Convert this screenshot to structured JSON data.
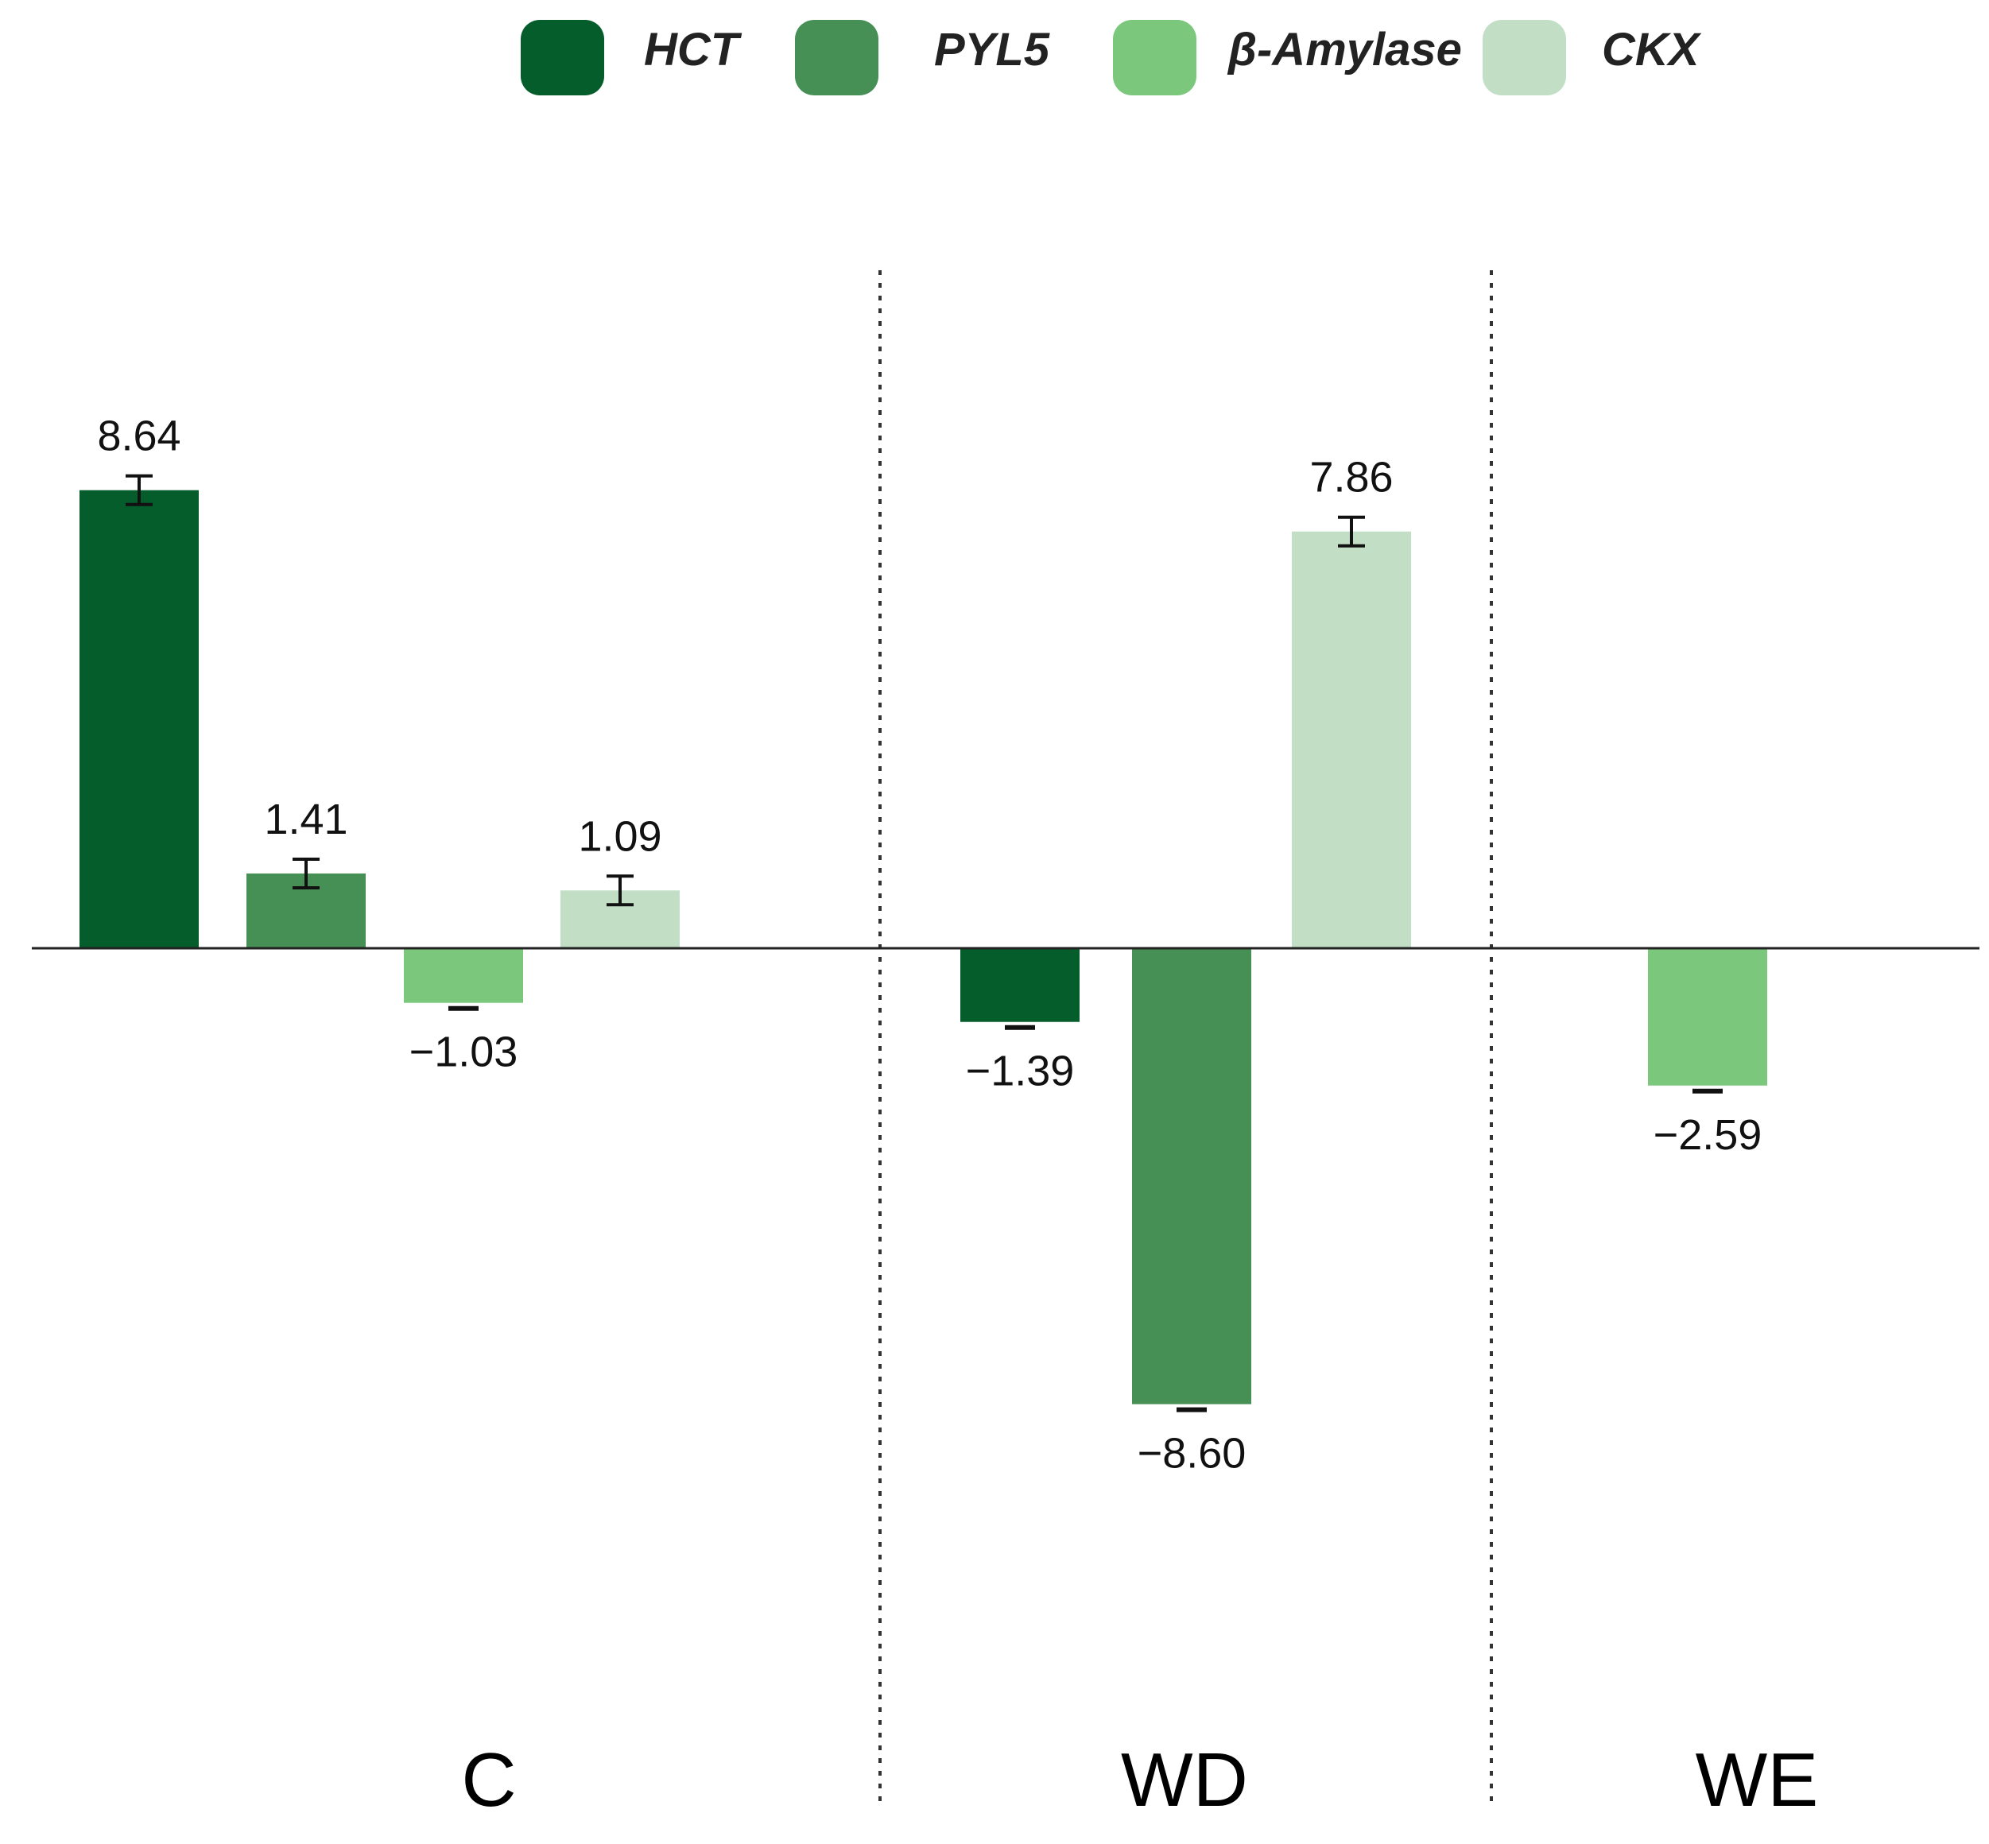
{
  "chart_data": {
    "type": "bar",
    "title": "",
    "xlabel": "",
    "ylabel": "",
    "ylim": [
      -10,
      10
    ],
    "grid": false,
    "legend_position": "top",
    "categories": [
      "C",
      "WD",
      "WE"
    ],
    "series": [
      {
        "name": "HCT",
        "color": "#065d2c",
        "values": [
          8.64,
          -1.39,
          null
        ],
        "labels": [
          "8.64",
          "−1.39",
          ""
        ],
        "error_bars": [
          true,
          true,
          false
        ]
      },
      {
        "name": "PYL5",
        "color": "#468f55",
        "values": [
          1.41,
          -8.6,
          null
        ],
        "labels": [
          "1.41",
          "−8.60",
          ""
        ],
        "error_bars": [
          true,
          true,
          false
        ]
      },
      {
        "name": "β-Amylase",
        "color": "#7bc77c",
        "values": [
          -1.03,
          null,
          -2.59
        ],
        "labels": [
          "−1.03",
          "",
          "−2.59"
        ],
        "error_bars": [
          true,
          false,
          true
        ]
      },
      {
        "name": "CKX",
        "color": "#c2dfc6",
        "values": [
          1.09,
          7.86,
          null
        ],
        "labels": [
          "1.09",
          "7.86",
          ""
        ],
        "error_bars": [
          true,
          true,
          false
        ]
      }
    ]
  }
}
